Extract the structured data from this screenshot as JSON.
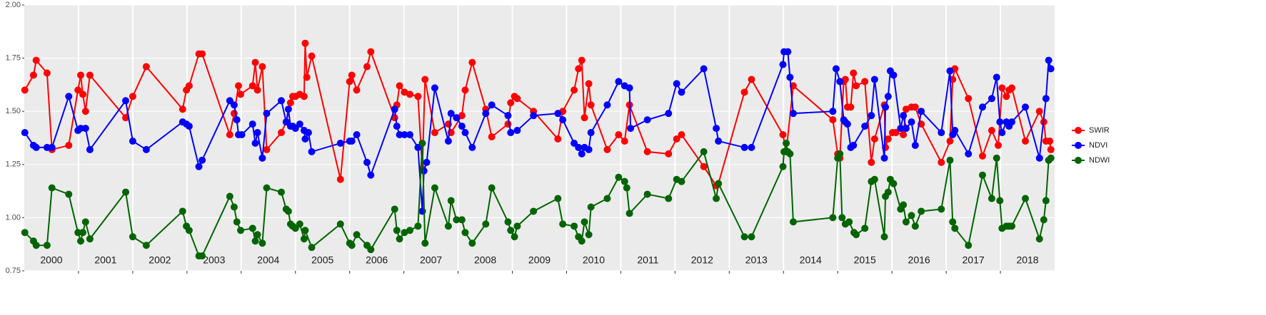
{
  "chart_data": {
    "type": "line",
    "xlim": [
      2000,
      2019
    ],
    "ylim": [
      0.75,
      2.0
    ],
    "yticks": [
      0.75,
      {
        "value": 1.0,
        "label": "1.00"
      },
      1.25,
      {
        "value": 1.5,
        "label": "1.50"
      },
      1.75,
      {
        "value": 2.0,
        "label": "2.00"
      }
    ],
    "xticks": [
      {
        "value": 2000.5,
        "label": "2000"
      },
      {
        "value": 2001.5,
        "label": "2001"
      },
      {
        "value": 2002.5,
        "label": "2002"
      },
      {
        "value": 2003.5,
        "label": "2003"
      },
      {
        "value": 2004.5,
        "label": "2004"
      },
      {
        "value": 2005.5,
        "label": "2005"
      },
      {
        "value": 2006.5,
        "label": "2006"
      },
      {
        "value": 2007.5,
        "label": "2007"
      },
      {
        "value": 2008.5,
        "label": "2008"
      },
      {
        "value": 2009.5,
        "label": "2009"
      },
      {
        "value": 2010.5,
        "label": "2010"
      },
      {
        "value": 2011.5,
        "label": "2011"
      },
      {
        "value": 2012.5,
        "label": "2012"
      },
      {
        "value": 2013.5,
        "label": "2013"
      },
      {
        "value": 2014.5,
        "label": "2014"
      },
      {
        "value": 2015.5,
        "label": "2015"
      },
      {
        "value": 2016.5,
        "label": "2016"
      },
      {
        "value": 2017.5,
        "label": "2017"
      },
      {
        "value": 2018.5,
        "label": "2018"
      }
    ],
    "x_gridlines": [
      2001,
      2002,
      2003,
      2004,
      2005,
      2006,
      2007,
      2008,
      2009,
      2010,
      2011,
      2012,
      2013,
      2014,
      2015,
      2016,
      2017,
      2018
    ],
    "grid": true,
    "legend_position": "right",
    "series": [
      {
        "name": "SWIR",
        "color": "#ff0000",
        "x": [
          2000.01,
          2000.17,
          2000.22,
          2000.42,
          2000.51,
          2000.82,
          2000.99,
          2001.04,
          2001.08,
          2001.13,
          2001.21,
          2001.87,
          2002.0,
          2002.25,
          2002.92,
          2002.99,
          2003.04,
          2003.22,
          2003.28,
          2003.79,
          2003.87,
          2003.95,
          2003.99,
          2004.21,
          2004.26,
          2004.3,
          2004.39,
          2004.47,
          2004.74,
          2004.83,
          2004.91,
          2004.95,
          2005.0,
          2005.08,
          2005.16,
          2005.18,
          2005.21,
          2005.3,
          2005.83,
          2006.0,
          2006.04,
          2006.13,
          2006.32,
          2006.39,
          2006.83,
          2006.87,
          2006.92,
          2007.01,
          2007.11,
          2007.26,
          2007.34,
          2007.39,
          2007.57,
          2007.82,
          2007.87,
          2008.07,
          2008.13,
          2008.26,
          2008.51,
          2008.62,
          2008.92,
          2008.97,
          2009.04,
          2009.09,
          2009.39,
          2009.84,
          2009.93,
          2010.14,
          2010.22,
          2010.28,
          2010.33,
          2010.41,
          2010.45,
          2010.75,
          2010.96,
          2011.07,
          2011.16,
          2011.49,
          2011.88,
          2012.03,
          2012.12,
          2012.53,
          2012.76,
          2012.8,
          2013.28,
          2013.41,
          2013.99,
          2014.05,
          2014.18,
          2014.91,
          2015.0,
          2015.04,
          2015.11,
          2015.14,
          2015.18,
          2015.24,
          2015.29,
          2015.34,
          2015.5,
          2015.62,
          2015.68,
          2015.86,
          2015.88,
          2015.93,
          2016.01,
          2016.07,
          2016.21,
          2016.26,
          2016.36,
          2016.43,
          2016.54,
          2016.91,
          2017.07,
          2017.12,
          2017.16,
          2017.41,
          2017.67,
          2017.84,
          2017.96,
          2018.03,
          2018.11,
          2018.16,
          2018.21,
          2018.46,
          2018.72,
          2018.8,
          2018.84,
          2018.91,
          2018.93
        ],
        "values": [
          1.6,
          1.67,
          1.74,
          1.68,
          1.32,
          1.34,
          1.6,
          1.67,
          1.58,
          1.5,
          1.67,
          1.47,
          1.57,
          1.71,
          1.51,
          1.6,
          1.62,
          1.77,
          1.77,
          1.39,
          1.49,
          1.62,
          1.58,
          1.62,
          1.73,
          1.6,
          1.71,
          1.32,
          1.4,
          1.45,
          1.54,
          1.57,
          1.57,
          1.58,
          1.57,
          1.82,
          1.66,
          1.76,
          1.18,
          1.64,
          1.67,
          1.6,
          1.71,
          1.78,
          1.47,
          1.53,
          1.62,
          1.59,
          1.58,
          1.57,
          1.23,
          1.65,
          1.4,
          1.44,
          1.4,
          1.48,
          1.6,
          1.73,
          1.51,
          1.38,
          1.44,
          1.54,
          1.57,
          1.56,
          1.5,
          1.37,
          1.5,
          1.6,
          1.7,
          1.74,
          1.47,
          1.63,
          1.53,
          1.32,
          1.39,
          1.36,
          1.53,
          1.31,
          1.3,
          1.37,
          1.39,
          1.24,
          1.15,
          1.16,
          1.59,
          1.65,
          1.39,
          1.31,
          1.62,
          1.46,
          1.3,
          1.28,
          1.64,
          1.65,
          1.52,
          1.52,
          1.68,
          1.62,
          1.64,
          1.26,
          1.37,
          1.53,
          1.33,
          1.37,
          1.4,
          1.4,
          1.39,
          1.51,
          1.52,
          1.52,
          1.44,
          1.26,
          1.36,
          1.65,
          1.7,
          1.56,
          1.29,
          1.41,
          1.34,
          1.61,
          1.57,
          1.6,
          1.61,
          1.36,
          1.5,
          1.45,
          1.36,
          1.36,
          1.32
        ]
      },
      {
        "name": "NDVI",
        "color": "#0000ff",
        "x": [
          2000.01,
          2000.17,
          2000.22,
          2000.42,
          2000.51,
          2000.82,
          2000.99,
          2001.04,
          2001.13,
          2001.21,
          2001.87,
          2002.0,
          2002.25,
          2002.92,
          2002.99,
          2003.04,
          2003.22,
          2003.28,
          2003.79,
          2003.87,
          2003.92,
          2003.95,
          2004.01,
          2004.21,
          2004.26,
          2004.3,
          2004.39,
          2004.47,
          2004.74,
          2004.83,
          2004.87,
          2004.91,
          2004.95,
          2005.0,
          2005.08,
          2005.16,
          2005.18,
          2005.24,
          2005.3,
          2005.83,
          2006.0,
          2006.04,
          2006.13,
          2006.32,
          2006.39,
          2006.83,
          2006.87,
          2006.92,
          2007.01,
          2007.11,
          2007.26,
          2007.34,
          2007.37,
          2007.42,
          2007.57,
          2007.82,
          2007.87,
          2007.97,
          2008.07,
          2008.13,
          2008.26,
          2008.51,
          2008.62,
          2008.92,
          2008.97,
          2009.09,
          2009.39,
          2009.84,
          2009.93,
          2010.14,
          2010.22,
          2010.28,
          2010.33,
          2010.41,
          2010.45,
          2010.75,
          2010.96,
          2011.07,
          2011.16,
          2011.18,
          2011.49,
          2011.88,
          2012.03,
          2012.12,
          2012.53,
          2012.76,
          2012.8,
          2013.28,
          2013.41,
          2013.99,
          2014.01,
          2014.08,
          2014.12,
          2014.18,
          2014.91,
          2014.97,
          2015.04,
          2015.11,
          2015.14,
          2015.18,
          2015.24,
          2015.29,
          2015.5,
          2015.62,
          2015.68,
          2015.86,
          2015.88,
          2015.93,
          2015.97,
          2016.03,
          2016.16,
          2016.21,
          2016.26,
          2016.36,
          2016.43,
          2016.54,
          2016.91,
          2017.07,
          2017.12,
          2017.16,
          2017.41,
          2017.67,
          2017.84,
          2017.93,
          2017.99,
          2018.03,
          2018.11,
          2018.16,
          2018.21,
          2018.46,
          2018.72,
          2018.84,
          2018.89,
          2018.93
        ],
        "values": [
          1.4,
          1.34,
          1.33,
          1.33,
          1.33,
          1.57,
          1.41,
          1.42,
          1.42,
          1.32,
          1.55,
          1.36,
          1.32,
          1.45,
          1.44,
          1.43,
          1.24,
          1.27,
          1.55,
          1.53,
          1.46,
          1.39,
          1.39,
          1.44,
          1.35,
          1.4,
          1.28,
          1.49,
          1.55,
          1.45,
          1.51,
          1.43,
          1.43,
          1.42,
          1.44,
          1.41,
          1.37,
          1.4,
          1.31,
          1.35,
          1.36,
          1.36,
          1.39,
          1.26,
          1.2,
          1.51,
          1.43,
          1.39,
          1.39,
          1.39,
          1.33,
          1.03,
          1.22,
          1.26,
          1.61,
          1.36,
          1.49,
          1.47,
          1.43,
          1.4,
          1.33,
          1.49,
          1.53,
          1.48,
          1.4,
          1.41,
          1.48,
          1.49,
          1.46,
          1.35,
          1.33,
          1.3,
          1.33,
          1.32,
          1.4,
          1.53,
          1.64,
          1.62,
          1.61,
          1.42,
          1.46,
          1.49,
          1.63,
          1.59,
          1.7,
          1.42,
          1.36,
          1.33,
          1.33,
          1.72,
          1.78,
          1.78,
          1.66,
          1.49,
          1.5,
          1.7,
          1.64,
          1.46,
          1.45,
          1.44,
          1.33,
          1.34,
          1.43,
          1.48,
          1.65,
          1.28,
          1.52,
          1.57,
          1.69,
          1.67,
          1.42,
          1.48,
          1.42,
          1.45,
          1.34,
          1.5,
          1.4,
          1.69,
          1.39,
          1.41,
          1.3,
          1.52,
          1.56,
          1.66,
          1.45,
          1.4,
          1.45,
          1.43,
          1.45,
          1.52,
          1.28,
          1.56,
          1.74,
          1.7
        ]
      },
      {
        "name": "NDWI",
        "color": "#006400",
        "x": [
          2000.01,
          2000.17,
          2000.22,
          2000.42,
          2000.51,
          2000.82,
          2000.99,
          2001.04,
          2001.08,
          2001.13,
          2001.21,
          2001.87,
          2002.0,
          2002.25,
          2002.92,
          2002.99,
          2003.04,
          2003.22,
          2003.28,
          2003.79,
          2003.87,
          2003.92,
          2003.99,
          2004.21,
          2004.26,
          2004.3,
          2004.39,
          2004.47,
          2004.74,
          2004.83,
          2004.87,
          2004.91,
          2004.95,
          2005.0,
          2005.08,
          2005.16,
          2005.18,
          2005.3,
          2005.83,
          2006.0,
          2006.04,
          2006.13,
          2006.32,
          2006.39,
          2006.83,
          2006.87,
          2006.92,
          2007.01,
          2007.11,
          2007.26,
          2007.34,
          2007.39,
          2007.57,
          2007.82,
          2007.87,
          2007.97,
          2008.07,
          2008.13,
          2008.26,
          2008.51,
          2008.62,
          2008.92,
          2008.97,
          2009.04,
          2009.09,
          2009.39,
          2009.84,
          2009.93,
          2010.14,
          2010.22,
          2010.28,
          2010.33,
          2010.41,
          2010.45,
          2010.75,
          2010.96,
          2011.07,
          2011.11,
          2011.16,
          2011.49,
          2011.88,
          2012.03,
          2012.12,
          2012.53,
          2012.76,
          2012.8,
          2013.28,
          2013.41,
          2013.99,
          2014.01,
          2014.05,
          2014.08,
          2014.12,
          2014.18,
          2014.91,
          2015.0,
          2015.04,
          2015.08,
          2015.14,
          2015.21,
          2015.3,
          2015.34,
          2015.5,
          2015.62,
          2015.68,
          2015.86,
          2015.88,
          2015.93,
          2015.97,
          2016.03,
          2016.16,
          2016.21,
          2016.26,
          2016.36,
          2016.43,
          2016.54,
          2016.91,
          2017.07,
          2017.12,
          2017.16,
          2017.41,
          2017.67,
          2017.84,
          2017.93,
          2017.99,
          2018.03,
          2018.11,
          2018.16,
          2018.21,
          2018.46,
          2018.72,
          2018.8,
          2018.84,
          2018.89,
          2018.93
        ],
        "values": [
          0.93,
          0.89,
          0.87,
          0.87,
          1.14,
          1.11,
          0.93,
          0.89,
          0.93,
          0.98,
          0.9,
          1.12,
          0.91,
          0.87,
          1.03,
          0.96,
          0.94,
          0.82,
          0.82,
          1.1,
          1.05,
          0.98,
          0.94,
          0.95,
          0.89,
          0.92,
          0.88,
          1.14,
          1.12,
          1.04,
          1.03,
          0.97,
          0.96,
          0.95,
          0.97,
          0.9,
          0.94,
          0.86,
          0.97,
          0.88,
          0.87,
          0.92,
          0.87,
          0.85,
          1.04,
          0.94,
          0.9,
          0.93,
          0.94,
          0.96,
          1.35,
          0.88,
          1.14,
          0.96,
          1.08,
          0.99,
          0.99,
          0.93,
          0.88,
          0.97,
          1.14,
          0.98,
          0.94,
          0.91,
          0.96,
          1.03,
          1.09,
          0.97,
          0.96,
          0.91,
          0.89,
          0.98,
          0.92,
          1.05,
          1.09,
          1.19,
          1.17,
          1.14,
          1.02,
          1.11,
          1.09,
          1.18,
          1.17,
          1.31,
          1.09,
          1.16,
          0.91,
          0.91,
          1.24,
          1.31,
          1.35,
          1.31,
          1.3,
          0.98,
          1.0,
          1.28,
          1.3,
          1.0,
          0.97,
          0.98,
          0.93,
          0.92,
          0.95,
          1.17,
          1.18,
          0.91,
          1.1,
          1.12,
          1.18,
          1.16,
          1.04,
          1.06,
          0.98,
          1.01,
          0.96,
          1.03,
          1.04,
          1.27,
          0.98,
          0.95,
          0.87,
          1.2,
          1.09,
          1.28,
          1.08,
          0.95,
          0.96,
          0.96,
          0.96,
          1.09,
          0.9,
          0.99,
          1.08,
          1.27,
          1.28
        ]
      }
    ]
  }
}
